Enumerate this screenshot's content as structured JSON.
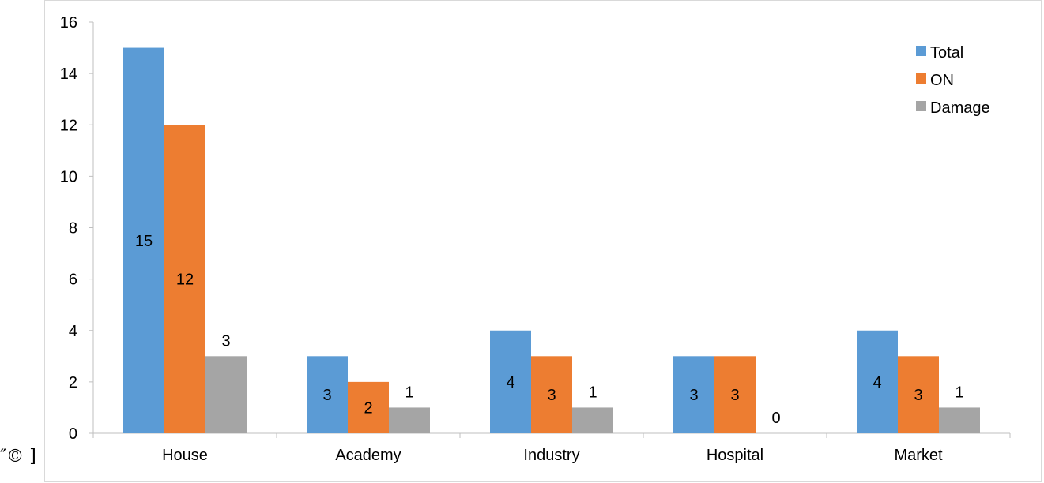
{
  "chart_data": {
    "type": "bar",
    "categories": [
      "House",
      "Academy",
      "Industry",
      "Hospital",
      "Market"
    ],
    "series": [
      {
        "name": "Total",
        "values": [
          15,
          3,
          4,
          3,
          4
        ],
        "color": "#5b9bd5"
      },
      {
        "name": "ON",
        "values": [
          12,
          2,
          3,
          3,
          3
        ],
        "color": "#ed7d31"
      },
      {
        "name": "Damage",
        "values": [
          3,
          1,
          1,
          0,
          1
        ],
        "color": "#a5a5a5"
      }
    ],
    "title": "",
    "xlabel": "",
    "ylabel": "",
    "ylim": [
      0,
      16
    ],
    "yticks": [
      0,
      2,
      4,
      6,
      8,
      10,
      12,
      14,
      16
    ],
    "grid": false,
    "legend": "top-right"
  },
  "stray_text": "″© ]"
}
